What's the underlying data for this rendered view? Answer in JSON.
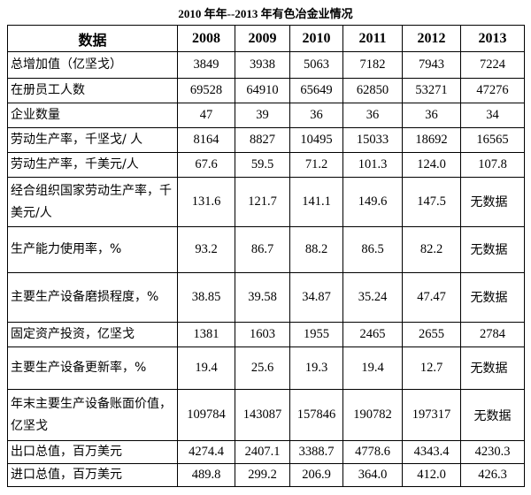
{
  "header": {
    "title": "2010 年年--2013 年有色冶金业情况"
  },
  "table": {
    "columns": [
      "数据",
      "2008",
      "2009",
      "2010",
      "2011",
      "2012",
      "2013"
    ],
    "rows": [
      [
        "总增加值（亿坚戈）",
        "3849",
        "3938",
        "5063",
        "7182",
        "7943",
        "7224"
      ],
      [
        "在册员工人数",
        "69528",
        "64910",
        "65649",
        "62850",
        "53271",
        "47276"
      ],
      [
        "企业数量",
        "47",
        "39",
        "36",
        "36",
        "36",
        "34"
      ],
      [
        "劳动生产率，千坚戈/ 人",
        "8164",
        "8827",
        "10495",
        "15033",
        "18692",
        "16565"
      ],
      [
        "劳动生产率，千美元/人",
        "67.6",
        "59.5",
        "71.2",
        "101.3",
        "124.0",
        "107.8"
      ],
      [
        "经合组织国家劳动生产率，千美元/人",
        "131.6",
        "121.7",
        "141.1",
        "149.6",
        "147.5",
        "无数据"
      ],
      [
        "生产能力使用率，%",
        "93.2",
        "86.7",
        "88.2",
        "86.5",
        "82.2",
        "无数据"
      ],
      [
        "主要生产设备磨损程度，%",
        "38.85",
        "39.58",
        "34.87",
        "35.24",
        "47.47",
        "无数据"
      ],
      [
        "固定资产投资，亿坚戈",
        "1381",
        "1603",
        "1955",
        "2465",
        "2655",
        "2784"
      ],
      [
        "主要生产设备更新率，%",
        "19.4",
        "25.6",
        "19.3",
        "19.4",
        "12.7",
        "无数据"
      ],
      [
        "年末主要生产设备账面价值，亿坚戈",
        "109784",
        "143087",
        "157846",
        "190782",
        "197317",
        "无数据"
      ],
      [
        "出口总值，百万美元",
        "4274.4",
        "2407.1",
        "3388.7",
        "4778.6",
        "4343.4",
        "4230.3"
      ],
      [
        "进口总值，百万美元",
        "489.8",
        "299.2",
        "206.9",
        "364.0",
        "412.0",
        "426.3"
      ]
    ]
  }
}
